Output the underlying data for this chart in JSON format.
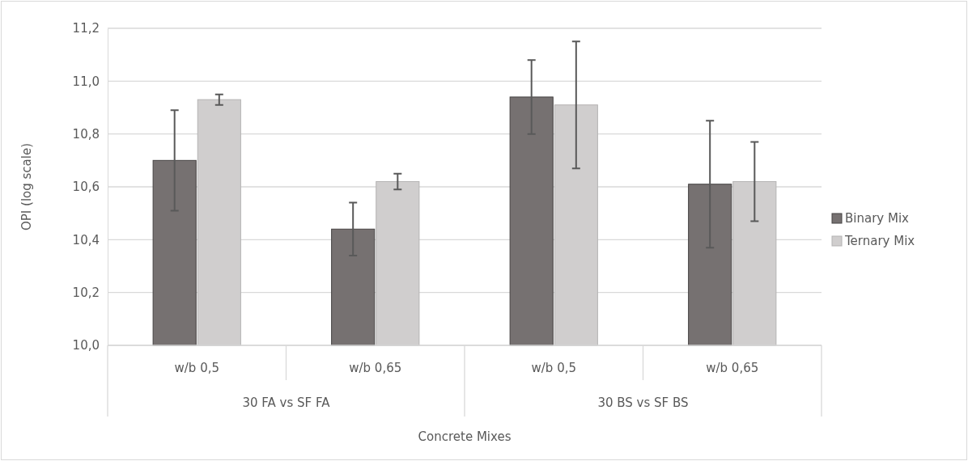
{
  "chart_data": {
    "type": "bar",
    "xlabel": "Concrete Mixes",
    "ylabel": "OPI (log scale)",
    "categories": [
      "w/b 0,5",
      "w/b 0,65",
      "w/b 0,5",
      "w/b 0,65"
    ],
    "series": [
      {
        "name": "Binary Mix",
        "color": "#767171",
        "values": [
          10.7,
          10.44,
          10.94,
          10.61
        ],
        "errors": [
          0.19,
          0.1,
          0.14,
          0.24
        ]
      },
      {
        "name": "Ternary Mix",
        "color": "#d0cece",
        "values": [
          10.93,
          10.62,
          10.91,
          10.62
        ],
        "errors": [
          0.02,
          0.03,
          0.24,
          0.15
        ]
      }
    ],
    "ylim": [
      10.0,
      11.2
    ],
    "yticks": [
      {
        "value": 10.0,
        "label": "10,0"
      },
      {
        "value": 10.2,
        "label": "10,2"
      },
      {
        "value": 10.4,
        "label": "10,4"
      },
      {
        "value": 10.6,
        "label": "10,6"
      },
      {
        "value": 10.8,
        "label": "10,8"
      },
      {
        "value": 11.0,
        "label": "11,0"
      },
      {
        "value": 11.2,
        "label": "11,2"
      }
    ],
    "grid": "y",
    "legend": "right",
    "annotations": [
      "30 FA vs SF FA",
      "30 BS vs SF BS"
    ]
  }
}
